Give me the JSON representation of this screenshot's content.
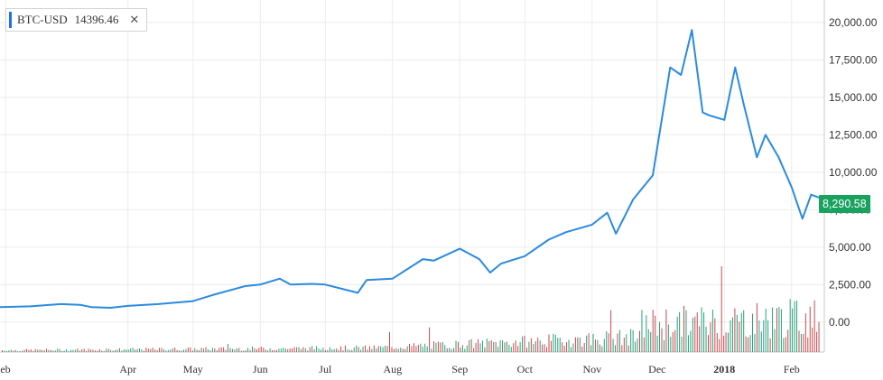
{
  "legend": {
    "symbol": "BTC-USD",
    "value": "14396.46",
    "accent": "#1a73e8",
    "close_glyph": "✕"
  },
  "last_price": {
    "label": "8,290.58",
    "color": "#19a15f"
  },
  "colors": {
    "line": "#2a8bdf",
    "grid": "#ececec",
    "axis": "#c8c8c8",
    "vol_up": "#2aa07a",
    "vol_down": "#c64b50"
  },
  "chart_data": {
    "type": "line",
    "series": [
      {
        "x": [
          "2017-02-01",
          "2017-02-15",
          "2017-03-01",
          "2017-03-10",
          "2017-03-15",
          "2017-03-24",
          "2017-04-01",
          "2017-04-15",
          "2017-05-01",
          "2017-05-10",
          "2017-05-20",
          "2017-05-25",
          "2017-06-01",
          "2017-06-10",
          "2017-06-15",
          "2017-06-25",
          "2017-07-01",
          "2017-07-16",
          "2017-07-20",
          "2017-08-01",
          "2017-08-15",
          "2017-08-20",
          "2017-09-01",
          "2017-09-10",
          "2017-09-15",
          "2017-09-20",
          "2017-10-01",
          "2017-10-12",
          "2017-10-20",
          "2017-11-01",
          "2017-11-08",
          "2017-11-12",
          "2017-11-20",
          "2017-11-29",
          "2017-12-07",
          "2017-12-12",
          "2017-12-17",
          "2017-12-22",
          "2017-12-25",
          "2018-01-01",
          "2018-01-06",
          "2018-01-10",
          "2018-01-16",
          "2018-01-20",
          "2018-01-26",
          "2018-02-01",
          "2018-02-06",
          "2018-02-10",
          "2018-02-14"
        ],
        "y": [
          1000,
          1050,
          1200,
          1150,
          1000,
          950,
          1080,
          1200,
          1400,
          1800,
          2200,
          2400,
          2500,
          2900,
          2500,
          2550,
          2500,
          1950,
          2800,
          2900,
          4200,
          4100,
          4900,
          4200,
          3300,
          3900,
          4400,
          5500,
          6000,
          6500,
          7300,
          5900,
          8200,
          9800,
          17000,
          16500,
          19500,
          14000,
          13800,
          13500,
          17000,
          14500,
          11000,
          12500,
          11000,
          9000,
          6900,
          8500,
          8290.58
        ]
      }
    ],
    "volume": {
      "note": "volume bars along bottom, colored up/down",
      "y_display_min": -2000
    },
    "x_tick_labels": [
      "eb",
      "Apr",
      "May",
      "Jun",
      "Jul",
      "Aug",
      "Sep",
      "Oct",
      "Nov",
      "Dec",
      "2018",
      "Feb"
    ],
    "y_tick_labels": [
      "20,000.00",
      "17,500.00",
      "15,000.00",
      "12,500.00",
      "10,000.00",
      "7,500.00",
      "5,000.00",
      "2,500.00",
      "0.00"
    ],
    "ylim": [
      -2000,
      21500
    ],
    "grid": true
  }
}
